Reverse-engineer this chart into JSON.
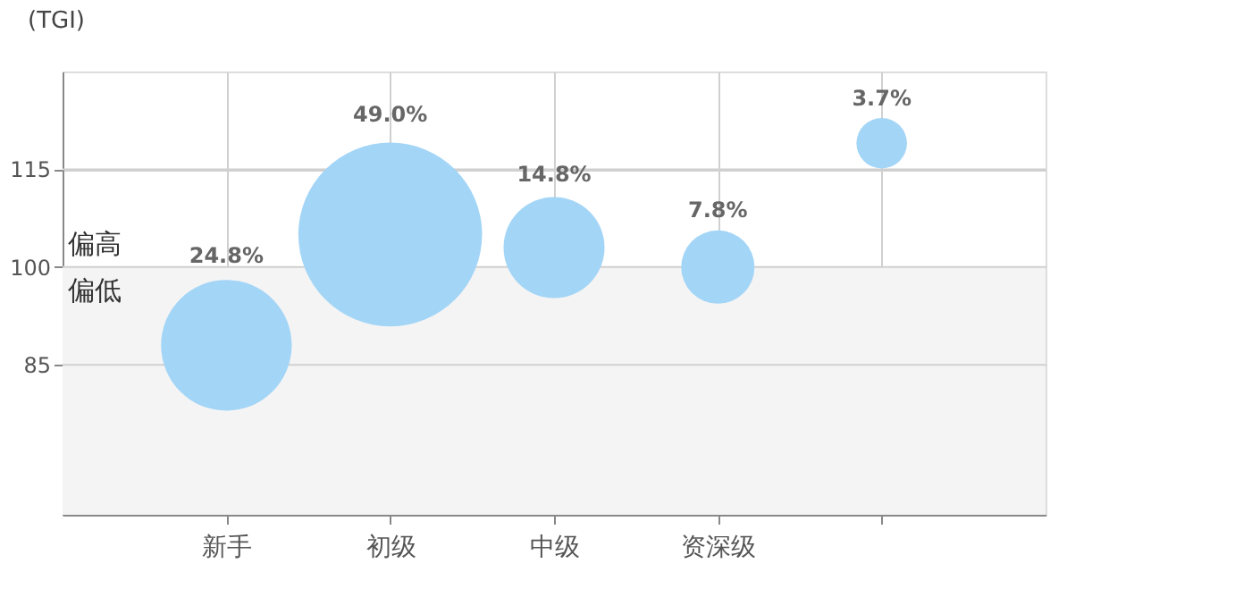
{
  "chart_data": {
    "type": "bubble",
    "ylabel": "(TGI)",
    "categories": [
      "新手",
      "初级",
      "中级",
      "资深级",
      null
    ],
    "values": [
      88,
      105,
      103,
      100,
      119
    ],
    "sizes": [
      24.8,
      49.0,
      14.8,
      7.8,
      3.7
    ],
    "value_labels": [
      "24.8%",
      "49.0%",
      "14.8%",
      "7.8%",
      "3.7%"
    ],
    "color": "#a3d5f7",
    "ylim": [
      62,
      130
    ],
    "yticks": [
      85,
      100,
      115
    ],
    "bands": [
      {
        "axis": "y",
        "from": 62,
        "to": 100,
        "color": "#f4f4f4"
      }
    ],
    "annotations": [
      "偏高",
      "偏低"
    ],
    "grid": true
  }
}
